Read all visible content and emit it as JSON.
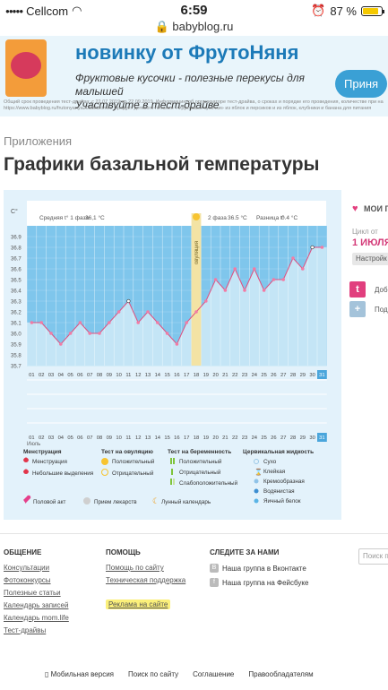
{
  "status": {
    "carrier": "Cellcom",
    "time": "6:59",
    "battery": "87 %"
  },
  "url": "babyblog.ru",
  "ad": {
    "headline": "новинку от ФрутоНяня",
    "subline1": "Фруктовые кусочки - полезные перекусы для малышей",
    "subline2": "Участвуйте в тест-драйве",
    "cta": "Приня",
    "fine": "Общий срок проведения тест-драйва: с 22.07.2019 по 22.09.2019. Информацию об организаторе тест-драйва, о сроках и порядке его проведения, количестве при на https://www.babyblog.ru/frutonyanya2019/id/onek. Продукт детского питания «Фруктовые кусочки» из яблок и персиков и из яблок, клубники и банана для питания"
  },
  "breadcrumb": "Приложения",
  "title": "Графики базальной температуры",
  "chart_header": {
    "phase1": "Средняя t° 1 фаза",
    "phase1_val": "36,1 °C",
    "phase2": "2 фаза",
    "phase2_val": "36.5 °C",
    "diff": "Разница t°",
    "diff_val": "0.4 °C",
    "unit": "C°",
    "ovulation": "овуляция",
    "month": "Июль"
  },
  "chart_data": {
    "type": "line",
    "x": [
      1,
      2,
      3,
      4,
      5,
      6,
      7,
      8,
      9,
      10,
      11,
      12,
      13,
      14,
      15,
      16,
      17,
      18,
      19,
      20,
      21,
      22,
      23,
      24,
      25,
      26,
      27,
      28,
      29,
      30,
      31
    ],
    "days_top": [
      "01",
      "02",
      "03",
      "04",
      "05",
      "06",
      "07",
      "08",
      "09",
      "10",
      "11",
      "12",
      "13",
      "14",
      "15",
      "16",
      "17",
      "18",
      "19",
      "20",
      "21",
      "22",
      "23",
      "24",
      "25",
      "26",
      "27",
      "28",
      "29",
      "30",
      "31"
    ],
    "days_bottom": [
      "01",
      "02",
      "03",
      "04",
      "05",
      "06",
      "07",
      "08",
      "09",
      "10",
      "11",
      "12",
      "13",
      "14",
      "15",
      "16",
      "17",
      "18",
      "19",
      "20",
      "21",
      "22",
      "23",
      "24",
      "25",
      "26",
      "27",
      "28",
      "29",
      "30",
      "31"
    ],
    "y_ticks": [
      "36.9",
      "36.8",
      "36.7",
      "36.6",
      "36.5",
      "36.4",
      "36.3",
      "36.2",
      "36.1",
      "36.0",
      "35.9",
      "35.8",
      "35.7"
    ],
    "values": [
      36.1,
      36.1,
      36.0,
      35.9,
      36.0,
      36.1,
      36.0,
      36.0,
      36.1,
      36.2,
      36.3,
      36.1,
      36.2,
      36.1,
      36.0,
      35.9,
      36.1,
      36.2,
      36.3,
      36.5,
      36.4,
      36.6,
      36.4,
      36.6,
      36.4,
      36.5,
      36.5,
      36.7,
      36.6,
      36.8,
      36.8
    ],
    "ylim": [
      35.7,
      37.0
    ],
    "ovulation_day": 18,
    "highlight_day": 31
  },
  "legend": {
    "menstruation": "Менструация",
    "menstr_1": "Менструация",
    "menstr_2": "Небольшие выделения",
    "ovtest": "Тест на овуляцию",
    "ov_1": "Положительный",
    "ov_2": "Отрицательный",
    "preg": "Тест на беременность",
    "preg_1": "Положительный",
    "preg_2": "Отрицательный",
    "preg_3": "Слабоположительный",
    "cerv": "Цервикальная жидкость",
    "cerv_1": "Сухо",
    "cerv_2": "Клейкая",
    "cerv_3": "Кремообразная",
    "cerv_4": "Водянистая",
    "cerv_5": "Яичный белок",
    "act": "Половой акт",
    "meds": "Прием лекарств",
    "lunar": "Лунный календарь"
  },
  "side": {
    "my": "МОИ Г",
    "cycle": "Цикл от",
    "date": "1 ИЮЛЯ",
    "settings": "Настройк",
    "add": "Доб",
    "sub": "Под"
  },
  "footer": {
    "col1_title": "ОБЩЕНИЕ",
    "col1": [
      "Консультации",
      "Фотоконкурсы",
      "Полезные статьи",
      "Календарь записей",
      "Календарь mom.life",
      "Тест-драйвы"
    ],
    "col2_title": "ПОМОЩЬ",
    "col2": [
      "Помощь по сайту",
      "Техническая поддержка"
    ],
    "col2_ad": "Реклама на сайте",
    "col3_title": "СЛЕДИТЕ ЗА НАМИ",
    "vk": "Наша группа в Вконтакте",
    "fb": "Наша группа на Фейсбуке",
    "search": "Поиск по сайт",
    "bottom": [
      "Мобильная версия",
      "Поиск по сайту",
      "Соглашение",
      "Правообладателям"
    ]
  }
}
